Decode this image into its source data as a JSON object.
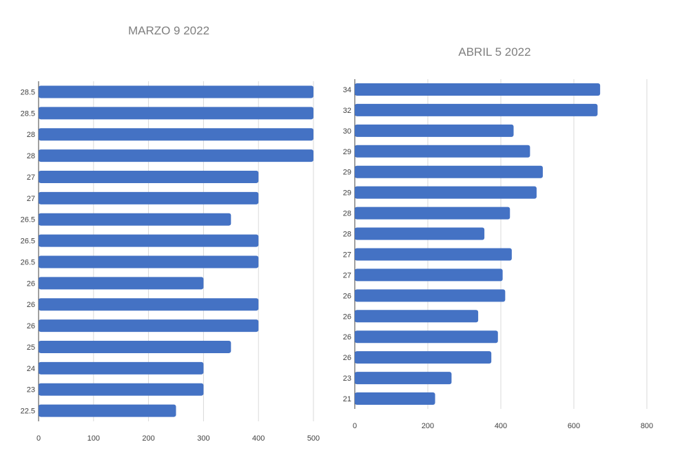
{
  "chart_data": [
    {
      "type": "bar",
      "orientation": "horizontal",
      "title": "MARZO 9 2022",
      "categories": [
        "28.5",
        "28.5",
        "28",
        "28",
        "27",
        "27",
        "26.5",
        "26.5",
        "26.5",
        "26",
        "26",
        "26",
        "25",
        "24",
        "23",
        "22.5"
      ],
      "values": [
        500,
        500,
        500,
        500,
        400,
        400,
        350,
        400,
        400,
        300,
        400,
        400,
        350,
        300,
        300,
        250
      ],
      "xlim": [
        0,
        500
      ],
      "xticks": [
        "0",
        "100",
        "200",
        "300",
        "400",
        "500"
      ],
      "grid": true,
      "color": "#4472C4"
    },
    {
      "type": "bar",
      "orientation": "horizontal",
      "title": "ABRIL 5 2022",
      "categories": [
        "34",
        "32",
        "30",
        "29",
        "29",
        "29",
        "28",
        "28",
        "27",
        "27",
        "26",
        "26",
        "26",
        "26",
        "23",
        "21"
      ],
      "values": [
        672,
        665,
        435,
        480,
        515,
        498,
        425,
        355,
        430,
        405,
        412,
        338,
        392,
        374,
        265,
        220
      ],
      "xlim": [
        0,
        800
      ],
      "xticks": [
        "0",
        "200",
        "400",
        "600",
        "800"
      ],
      "grid": true,
      "color": "#4472C4"
    }
  ]
}
